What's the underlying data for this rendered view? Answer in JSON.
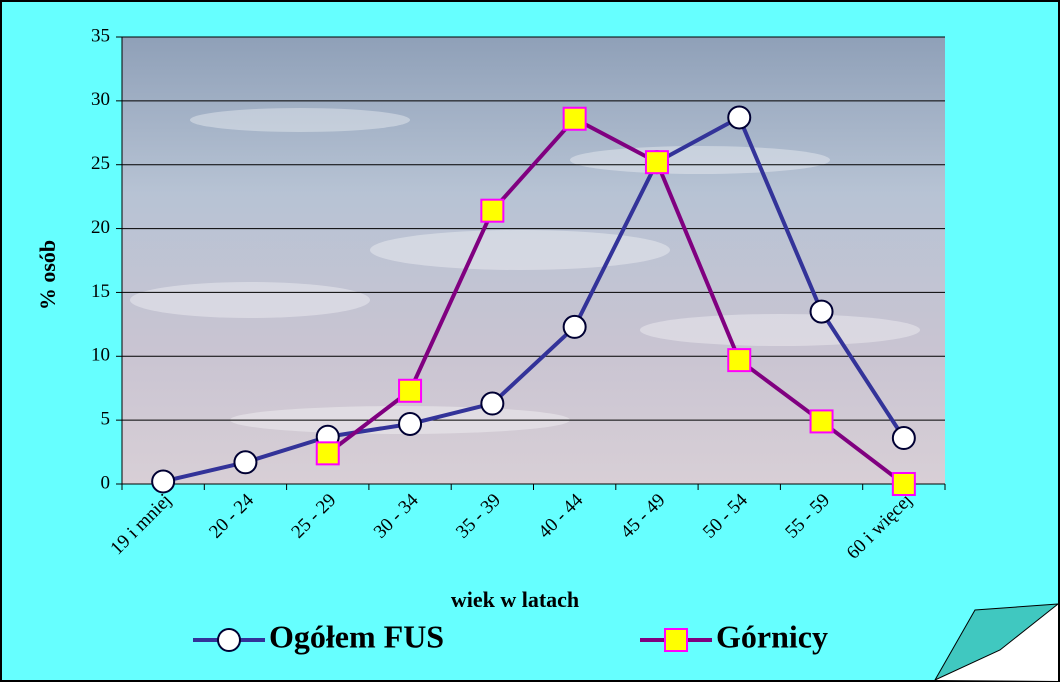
{
  "chart_data": {
    "type": "line",
    "ylabel": "% osób",
    "xlabel": "wiek w latach",
    "categories": [
      "19 i mniej",
      "20 - 24",
      "25 - 29",
      "30 - 34",
      "35 - 39",
      "40 - 44",
      "45 - 49",
      "50 - 54",
      "55 - 59",
      "60 i więcej"
    ],
    "series": [
      {
        "name": "Ogółem FUS",
        "color": "#333399",
        "marker": "circle",
        "marker_fill": "#ffffff",
        "marker_stroke": "#000033",
        "values": [
          0.2,
          1.7,
          3.7,
          4.7,
          6.3,
          12.3,
          25.2,
          28.7,
          13.5,
          3.6
        ]
      },
      {
        "name": "Górnicy",
        "color": "#800080",
        "marker": "square",
        "marker_fill": "#ffff00",
        "marker_stroke": "#ff00ff",
        "values": [
          null,
          null,
          2.4,
          7.3,
          21.4,
          28.6,
          25.2,
          9.7,
          4.9,
          0.0
        ]
      }
    ],
    "ylim": [
      0,
      35
    ],
    "yticks": [
      0,
      5,
      10,
      15,
      20,
      25,
      30,
      35
    ],
    "grid": true,
    "legend": "bottom"
  }
}
